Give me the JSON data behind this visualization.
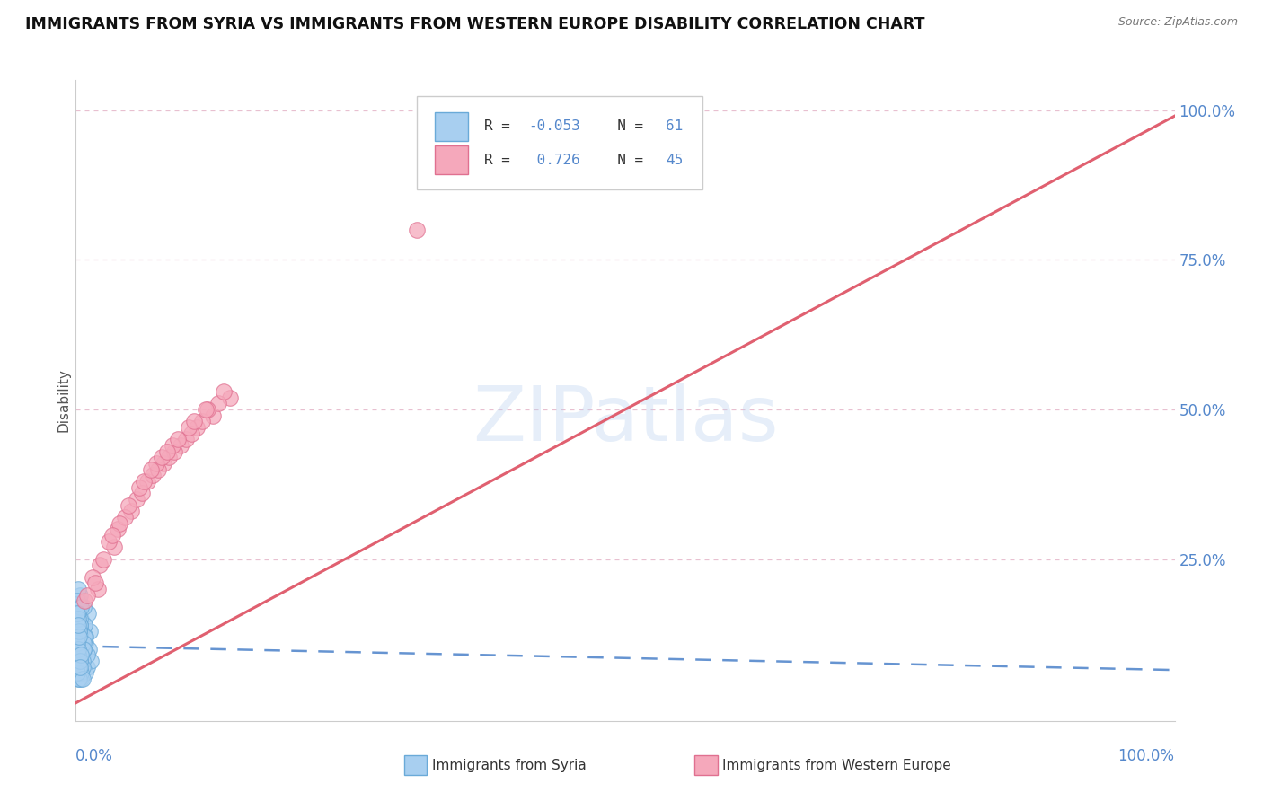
{
  "title": "IMMIGRANTS FROM SYRIA VS IMMIGRANTS FROM WESTERN EUROPE DISABILITY CORRELATION CHART",
  "source": "Source: ZipAtlas.com",
  "ylabel": "Disability",
  "y_tick_values": [
    0.25,
    0.5,
    0.75,
    1.0
  ],
  "legend1_R": "-0.053",
  "legend1_N": "61",
  "legend2_R": "0.726",
  "legend2_N": "45",
  "blue_color": "#a8cff0",
  "pink_color": "#f5a8bb",
  "blue_edge_color": "#6aaad8",
  "pink_edge_color": "#e07090",
  "blue_trend_color": "#5588cc",
  "pink_trend_color": "#e06070",
  "grid_color": "#e8c0d0",
  "watermark": "ZIPatlas",
  "syria_x": [
    0.002,
    0.003,
    0.004,
    0.005,
    0.006,
    0.007,
    0.008,
    0.009,
    0.01,
    0.011,
    0.012,
    0.013,
    0.014,
    0.003,
    0.005,
    0.007,
    0.009,
    0.002,
    0.004,
    0.006,
    0.008,
    0.01,
    0.001,
    0.003,
    0.005,
    0.007,
    0.009,
    0.002,
    0.004,
    0.006,
    0.008,
    0.003,
    0.005,
    0.007,
    0.002,
    0.004,
    0.006,
    0.001,
    0.003,
    0.005,
    0.007,
    0.002,
    0.004,
    0.001,
    0.003,
    0.005,
    0.002,
    0.004,
    0.001,
    0.003,
    0.002,
    0.001,
    0.003,
    0.002,
    0.004,
    0.001,
    0.006,
    0.003,
    0.005,
    0.002,
    0.004
  ],
  "syria_y": [
    0.1,
    0.13,
    0.08,
    0.15,
    0.12,
    0.09,
    0.14,
    0.11,
    0.07,
    0.16,
    0.1,
    0.13,
    0.08,
    0.18,
    0.06,
    0.17,
    0.12,
    0.05,
    0.19,
    0.11,
    0.14,
    0.09,
    0.16,
    0.07,
    0.13,
    0.1,
    0.06,
    0.2,
    0.15,
    0.08,
    0.12,
    0.17,
    0.05,
    0.11,
    0.09,
    0.14,
    0.07,
    0.18,
    0.13,
    0.06,
    0.1,
    0.16,
    0.08,
    0.12,
    0.05,
    0.17,
    0.09,
    0.14,
    0.11,
    0.07,
    0.15,
    0.06,
    0.13,
    0.1,
    0.08,
    0.16,
    0.05,
    0.12,
    0.09,
    0.14,
    0.07
  ],
  "western_x": [
    0.02,
    0.035,
    0.05,
    0.065,
    0.08,
    0.095,
    0.11,
    0.125,
    0.14,
    0.008,
    0.022,
    0.038,
    0.055,
    0.07,
    0.085,
    0.1,
    0.115,
    0.13,
    0.015,
    0.03,
    0.045,
    0.06,
    0.075,
    0.09,
    0.105,
    0.12,
    0.01,
    0.025,
    0.04,
    0.058,
    0.073,
    0.088,
    0.103,
    0.118,
    0.135,
    0.048,
    0.062,
    0.078,
    0.093,
    0.108,
    0.018,
    0.033,
    0.068,
    0.083,
    0.31
  ],
  "western_y": [
    0.2,
    0.27,
    0.33,
    0.38,
    0.41,
    0.44,
    0.47,
    0.49,
    0.52,
    0.18,
    0.24,
    0.3,
    0.35,
    0.39,
    0.42,
    0.45,
    0.48,
    0.51,
    0.22,
    0.28,
    0.32,
    0.36,
    0.4,
    0.43,
    0.46,
    0.5,
    0.19,
    0.25,
    0.31,
    0.37,
    0.41,
    0.44,
    0.47,
    0.5,
    0.53,
    0.34,
    0.38,
    0.42,
    0.45,
    0.48,
    0.21,
    0.29,
    0.4,
    0.43,
    0.8
  ],
  "xlim": [
    0.0,
    1.0
  ],
  "ylim": [
    -0.02,
    1.05
  ]
}
